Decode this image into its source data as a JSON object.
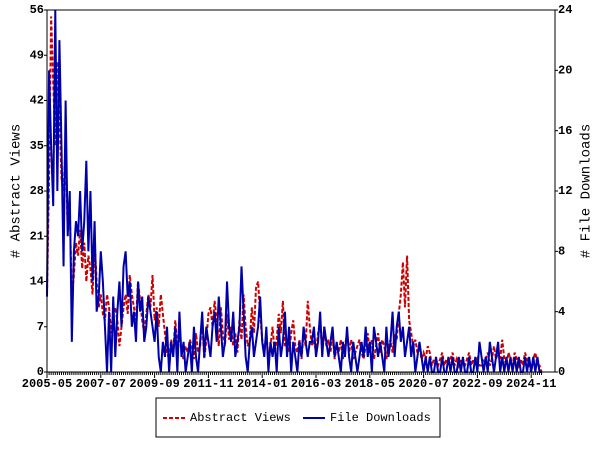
{
  "chart_data": {
    "type": "line",
    "ylabel": "# Abstract Views",
    "y2label": "# File Downloads",
    "categories": [
      "2005-05",
      null,
      null,
      null,
      null,
      null,
      null,
      null,
      null,
      null,
      null,
      null,
      null,
      null,
      null,
      null,
      null,
      null,
      null,
      null,
      null,
      null,
      null,
      null,
      null,
      null,
      "2007-07",
      null,
      null,
      null,
      null,
      null,
      null,
      null,
      null,
      null,
      null,
      null,
      null,
      null,
      null,
      null,
      null,
      null,
      null,
      null,
      null,
      null,
      null,
      null,
      null,
      null,
      "2009-09",
      null,
      null,
      null,
      null,
      null,
      null,
      null,
      null,
      null,
      null,
      null,
      null,
      null,
      null,
      null,
      null,
      null,
      null,
      null,
      null,
      null,
      null,
      null,
      null,
      null,
      "2011-11",
      null,
      null,
      null,
      null,
      null,
      null,
      null,
      null,
      null,
      null,
      null,
      null,
      null,
      null,
      null,
      null,
      null,
      null,
      null,
      null,
      null,
      null,
      null,
      null,
      null,
      "2014-01",
      null,
      null,
      null,
      null,
      null,
      null,
      null,
      null,
      null,
      null,
      null,
      null,
      null,
      null,
      null,
      null,
      null,
      null,
      null,
      null,
      null,
      null,
      null,
      null,
      null,
      "2016-03",
      null,
      null,
      null,
      null,
      null,
      null,
      null,
      null,
      null,
      null,
      null,
      null,
      null,
      null,
      null,
      null,
      null,
      null,
      null,
      null,
      null,
      null,
      null,
      null,
      null,
      "2018-05",
      null,
      null,
      null,
      null,
      null,
      null,
      null,
      null,
      null,
      null,
      null,
      null,
      null,
      null,
      null,
      null,
      null,
      null,
      null,
      null,
      null,
      null,
      null,
      null,
      null,
      "2020-07",
      null,
      null,
      null,
      null,
      null,
      null,
      null,
      null,
      null,
      null,
      null,
      null,
      null,
      null,
      null,
      null,
      null,
      null,
      null,
      null,
      null,
      null,
      null,
      null,
      null,
      "2022-09",
      null,
      null,
      null,
      null,
      null,
      null,
      null,
      null,
      null,
      null,
      null,
      null,
      null,
      null,
      null,
      null,
      null,
      null,
      null,
      null,
      null,
      null,
      null,
      null,
      null,
      "2024-11",
      null,
      null,
      null,
      null,
      null
    ],
    "ylim": [
      0,
      56
    ],
    "yticks": [
      0,
      7,
      14,
      21,
      28,
      35,
      42,
      49,
      56
    ],
    "y2lim": [
      0,
      24
    ],
    "y2ticks": [
      0,
      4,
      8,
      12,
      16,
      20,
      24
    ],
    "legend": "bottom",
    "series": [
      {
        "name": "Abstract Views",
        "color": "#cc0000",
        "linestyle": "dashed",
        "values": [
          12,
          30,
          55,
          45,
          35,
          48,
          40,
          30,
          28,
          35,
          22,
          25,
          12,
          15,
          20,
          18,
          22,
          16,
          20,
          14,
          18,
          16,
          12,
          20,
          14,
          10,
          12,
          9,
          8,
          12,
          10,
          6,
          9,
          10,
          8,
          4,
          7,
          10,
          12,
          9,
          15,
          12,
          10,
          8,
          14,
          11,
          8,
          6,
          9,
          12,
          10,
          15,
          8,
          10,
          7,
          12,
          9,
          6,
          3,
          2,
          5,
          3,
          8,
          4,
          6,
          3,
          2,
          4,
          3,
          5,
          4,
          2,
          6,
          3,
          4,
          8,
          2,
          5,
          9,
          10,
          7,
          11,
          8,
          4,
          10,
          6,
          4,
          9,
          5,
          7,
          4,
          6,
          3,
          8,
          5,
          12,
          7,
          4,
          5,
          10,
          6,
          13,
          14,
          9,
          5,
          3,
          6,
          2,
          4,
          7,
          3,
          5,
          9,
          6,
          11,
          4,
          5,
          3,
          6,
          8,
          4,
          3,
          5,
          2,
          6,
          4,
          11,
          7,
          4,
          5,
          3,
          6,
          8,
          3,
          7,
          4,
          5,
          3,
          6,
          2,
          4,
          3,
          5,
          2,
          4,
          6,
          3,
          5,
          2,
          3,
          4,
          5,
          3,
          2,
          4,
          6,
          3,
          5,
          2,
          4,
          6,
          3,
          5,
          4,
          2,
          4,
          5,
          3,
          6,
          5,
          9,
          12,
          17,
          10,
          18,
          8,
          6,
          4,
          5,
          3,
          4,
          2,
          3,
          2,
          4,
          3,
          1,
          2,
          2,
          1,
          2,
          3,
          1,
          2,
          1,
          2,
          3,
          1,
          2,
          1,
          2,
          1,
          1,
          2,
          3,
          1,
          2,
          1,
          2,
          1,
          1,
          2,
          2,
          3,
          1,
          2,
          4,
          2,
          3,
          2,
          5,
          2,
          1,
          3,
          2,
          1,
          3,
          2,
          1,
          2,
          1,
          3,
          2,
          1,
          0,
          2,
          3,
          1,
          1,
          0
        ]
      },
      {
        "name": "File Downloads",
        "color": "#0000aa",
        "linestyle": "solid",
        "axis": "y2",
        "values": [
          5,
          20,
          15,
          11,
          24,
          12,
          22,
          15,
          7,
          18,
          9,
          12,
          2,
          8,
          10,
          9,
          12,
          8,
          10,
          14,
          8,
          12,
          6,
          10,
          4,
          5,
          8,
          6,
          3,
          0,
          4,
          0,
          5,
          1,
          4,
          6,
          3,
          7,
          8,
          5,
          6,
          3,
          4,
          2,
          6,
          4,
          5,
          2,
          3,
          5,
          4,
          3,
          2,
          4,
          1,
          0,
          2,
          1,
          3,
          0,
          2,
          1,
          3,
          0,
          4,
          1,
          2,
          0,
          1,
          2,
          0,
          3,
          1,
          0,
          2,
          4,
          1,
          3,
          2,
          1,
          3,
          4,
          2,
          5,
          3,
          1,
          2,
          6,
          3,
          2,
          4,
          1,
          2,
          3,
          7,
          4,
          1,
          0,
          2,
          3,
          1,
          2,
          3,
          5,
          2,
          1,
          3,
          0,
          2,
          1,
          2,
          0,
          3,
          1,
          2,
          4,
          1,
          3,
          0,
          2,
          1,
          0,
          2,
          1,
          3,
          2,
          1,
          2,
          2,
          3,
          1,
          2,
          4,
          1,
          3,
          2,
          1,
          2,
          3,
          1,
          2,
          1,
          0,
          2,
          1,
          3,
          1,
          0,
          2,
          1,
          0,
          1,
          2,
          1,
          3,
          1,
          2,
          0,
          3,
          2,
          1,
          2,
          1,
          0,
          3,
          1,
          2,
          4,
          1,
          3,
          4,
          2,
          3,
          1,
          2,
          3,
          1,
          2,
          0,
          1,
          2,
          1,
          0,
          1,
          0,
          1,
          0,
          0,
          1,
          0,
          0,
          1,
          0,
          0,
          1,
          0,
          1,
          0,
          0,
          1,
          0,
          1,
          0,
          0,
          1,
          0,
          0,
          1,
          0,
          2,
          1,
          0,
          1,
          0,
          2,
          1,
          0,
          1,
          2,
          0,
          1,
          0,
          1,
          0,
          1,
          0,
          1,
          0,
          1,
          0,
          0,
          1,
          0,
          1,
          0,
          1,
          0,
          1,
          0,
          0
        ]
      }
    ]
  }
}
